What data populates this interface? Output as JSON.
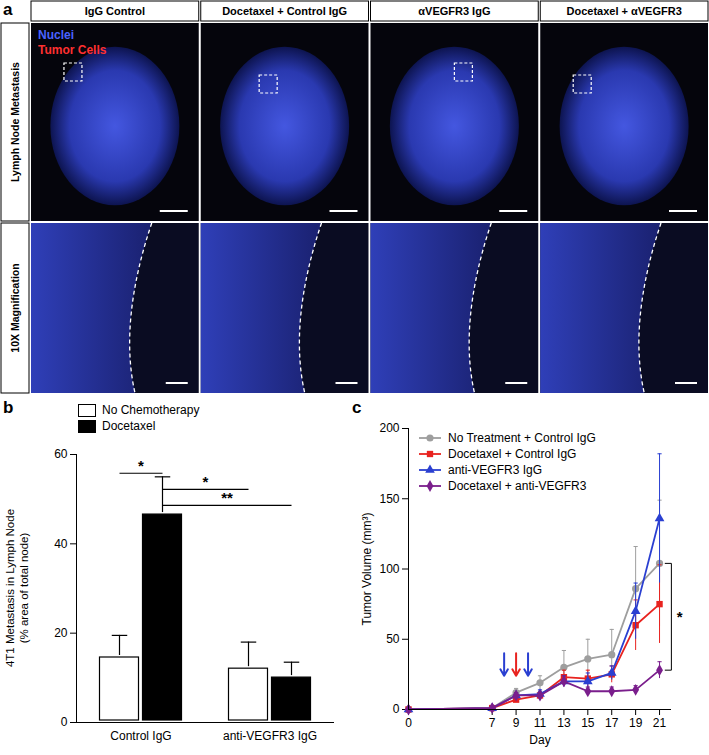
{
  "image_panel": {
    "panel": "a",
    "columns": [
      "IgG Control",
      "Docetaxel + Control IgG",
      "αVEGFR3 IgG",
      "Docetaxel + αVEGFR3"
    ],
    "rows": [
      "Lymph Node Metastasis",
      "10X Magnification"
    ],
    "legend": [
      {
        "name": "Nuclei",
        "color": "#4a63ff"
      },
      {
        "name": "Tumor Cells",
        "color": "#ff3030"
      }
    ]
  },
  "chart_data": [
    {
      "panel": "b",
      "type": "bar",
      "categories": [
        "Control IgG",
        "anti-VEGFR3 IgG"
      ],
      "series": [
        {
          "name": "No Chemotherapy",
          "color": "#ffffff",
          "values": [
            15,
            12.5
          ],
          "errors": [
            4.5,
            5.5
          ]
        },
        {
          "name": "Docetaxel",
          "color": "#000000",
          "values": [
            47,
            10.5
          ],
          "errors": [
            8,
            3
          ]
        }
      ],
      "ylabel": [
        "4T1 Metastasis in Lymph Node",
        "(% area of total node)"
      ],
      "ylim": [
        0,
        60
      ],
      "yticks": [
        0,
        20,
        40,
        60
      ],
      "legend": "top",
      "annotations": [
        {
          "text": "*",
          "from": [
            "Control IgG",
            "No Chemotherapy"
          ],
          "to": [
            "Control IgG",
            "Docetaxel"
          ]
        },
        {
          "text": "*",
          "from": [
            "Control IgG",
            "Docetaxel"
          ],
          "to": [
            "anti-VEGFR3 IgG",
            "No Chemotherapy"
          ]
        },
        {
          "text": "**",
          "from": [
            "Control IgG",
            "Docetaxel"
          ],
          "to": [
            "anti-VEGFR3 IgG",
            "Docetaxel"
          ]
        }
      ]
    },
    {
      "panel": "c",
      "type": "line",
      "x": [
        0,
        7,
        9,
        11,
        13,
        15,
        17,
        19,
        21
      ],
      "xlabel": "Day",
      "ylabel": "Tumor Volume (mm³)",
      "xlim": [
        0,
        22
      ],
      "xticks": [
        0,
        7,
        9,
        11,
        13,
        15,
        17,
        19,
        21
      ],
      "ylim": [
        0,
        200
      ],
      "yticks": [
        0,
        50,
        100,
        150,
        200
      ],
      "legend": "top-left",
      "series": [
        {
          "name": "No Treatment + Control IgG",
          "color": "#9e9e9e",
          "marker": "circle",
          "values": [
            0,
            1,
            12,
            19,
            30,
            36,
            39,
            86,
            104
          ],
          "errors": [
            0,
            0,
            3,
            5,
            12,
            14,
            18,
            30,
            45
          ]
        },
        {
          "name": "Docetaxel + Control IgG",
          "color": "#e8231f",
          "marker": "square",
          "values": [
            0,
            1,
            7,
            10,
            23,
            22,
            25,
            60,
            75
          ],
          "errors": [
            0,
            0,
            2,
            3,
            5,
            6,
            6,
            18,
            28
          ]
        },
        {
          "name": "anti-VEGFR3 IgG",
          "color": "#2a3fd1",
          "marker": "triangle",
          "values": [
            0,
            1,
            10,
            11,
            20,
            20,
            26,
            70,
            136
          ],
          "errors": [
            0,
            0,
            2,
            3,
            4,
            6,
            5,
            20,
            46
          ]
        },
        {
          "name": "Docetaxel + anti-VEGFR3",
          "color": "#7a1e8c",
          "marker": "diamond",
          "values": [
            0,
            1,
            10,
            10,
            20,
            13,
            13,
            14,
            28
          ],
          "errors": [
            0,
            0,
            2,
            2,
            4,
            3,
            3,
            3,
            6
          ]
        }
      ],
      "treatment_days": [
        {
          "day": 8,
          "color": "#2a3fd1"
        },
        {
          "day": 9,
          "color": "#e8231f"
        },
        {
          "day": 10,
          "color": "#2a3fd1"
        }
      ],
      "annotations": [
        {
          "text": "*",
          "x": 21,
          "from": "No Treatment + Control IgG",
          "to": "Docetaxel + anti-VEGFR3"
        }
      ]
    }
  ]
}
